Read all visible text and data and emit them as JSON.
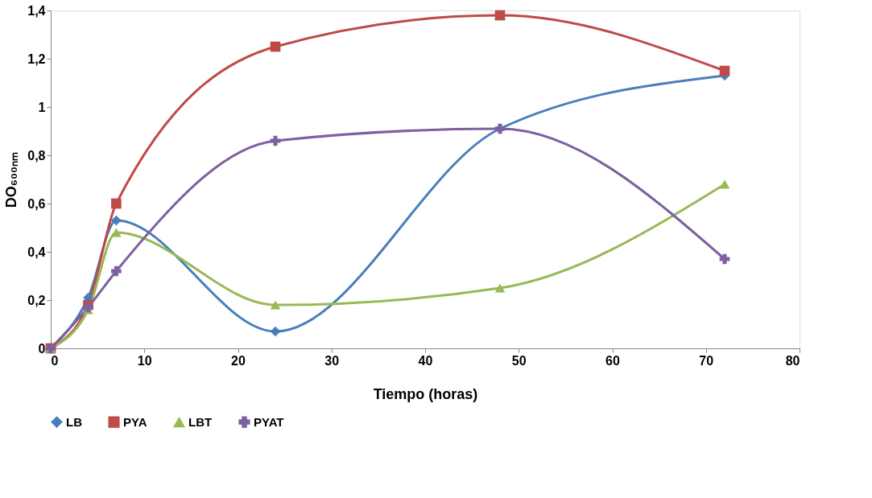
{
  "chart_data": {
    "type": "line",
    "xlabel": "Tiempo (horas)",
    "ylabel": "DO₆₀₀ₙₘ",
    "x": [
      0,
      4,
      7,
      24,
      48,
      72
    ],
    "series": [
      {
        "name": "LB",
        "color": "#4a7ebb",
        "marker": "diamond",
        "values": [
          0,
          0.21,
          0.53,
          0.07,
          0.91,
          1.13
        ]
      },
      {
        "name": "PYA",
        "color": "#be4b48",
        "marker": "square",
        "values": [
          0,
          0.18,
          0.6,
          1.25,
          1.38,
          1.15
        ]
      },
      {
        "name": "LBT",
        "color": "#98b954",
        "marker": "triangle",
        "values": [
          0,
          0.16,
          0.48,
          0.18,
          0.25,
          0.68
        ]
      },
      {
        "name": "PYAT",
        "color": "#7d60a0",
        "marker": "cross",
        "values": [
          0,
          0.17,
          0.32,
          0.86,
          0.91,
          0.37
        ]
      }
    ],
    "xlim": [
      0,
      80
    ],
    "xticks": [
      0,
      10,
      20,
      30,
      40,
      50,
      60,
      70,
      80
    ],
    "ylim": [
      0,
      1.4
    ],
    "yticks": [
      0,
      {
        "value": 0.2,
        "label": "0,2"
      },
      {
        "value": 0.4,
        "label": "0,4"
      },
      {
        "value": 0.6,
        "label": "0,6"
      },
      {
        "value": 0.8,
        "label": "0,8"
      },
      1,
      {
        "value": 1.2,
        "label": "1,2"
      },
      {
        "value": 1.4,
        "label": "1,4"
      }
    ],
    "grid": false,
    "legend": "bottom",
    "line_style": "solid"
  }
}
